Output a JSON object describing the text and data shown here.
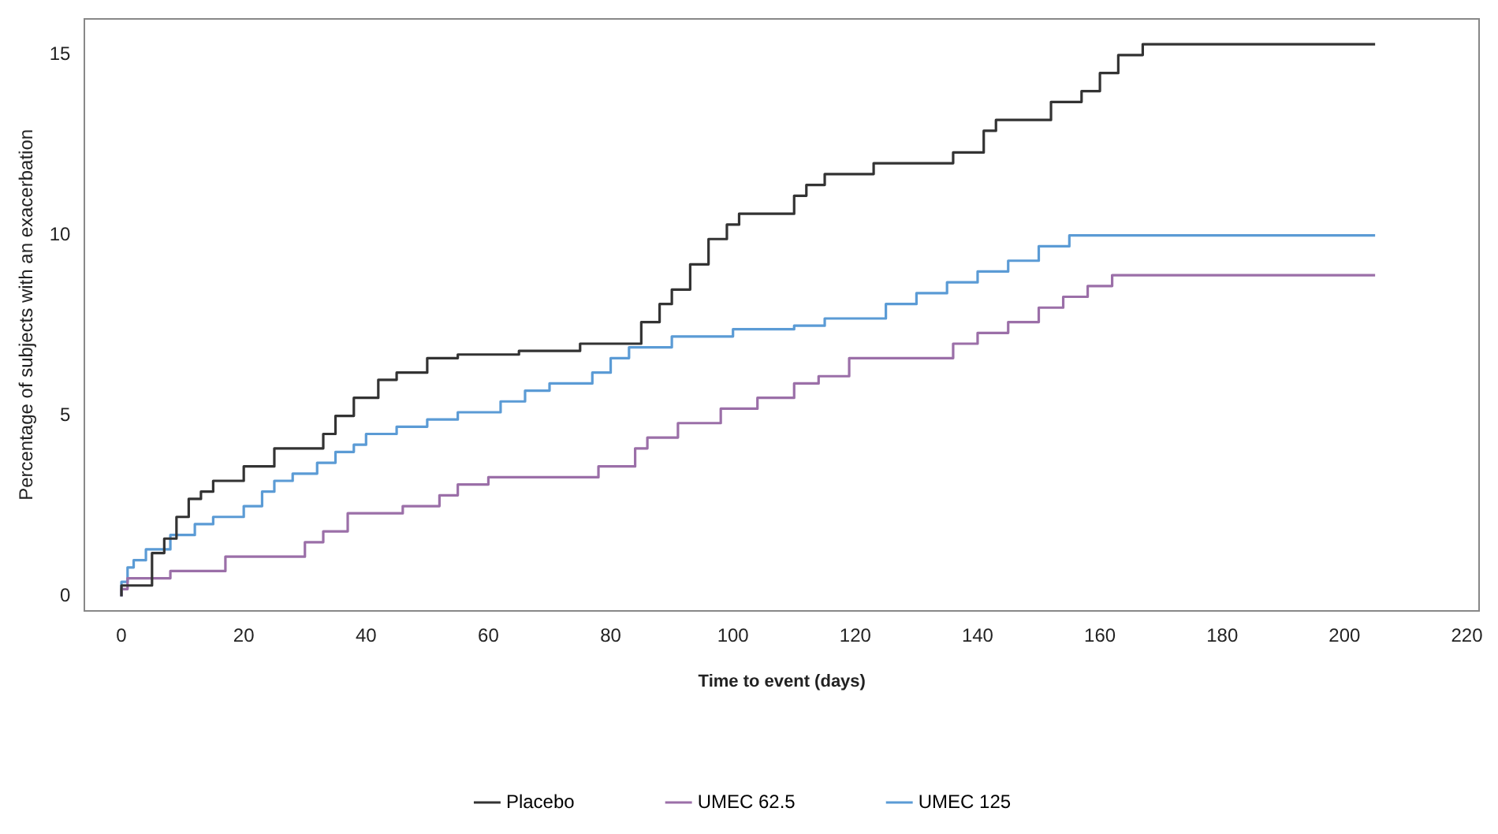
{
  "chart_data": {
    "type": "step",
    "xlabel": "Time to event (days)",
    "ylabel": "Percentage of subjects with an exacerbation",
    "xlim": [
      -6,
      222
    ],
    "xticks": [
      0,
      20,
      40,
      60,
      80,
      100,
      120,
      140,
      160,
      180,
      200,
      220
    ],
    "ylim": [
      -0.4,
      16
    ],
    "yticks": [
      0,
      5,
      10,
      15
    ],
    "grid": false,
    "legend": "bottom",
    "marker": "none",
    "line_style": "solid",
    "series": [
      {
        "name": "Placebo",
        "color": "#333333",
        "x": [
          0,
          5,
          7,
          9,
          11,
          13,
          15,
          20,
          25,
          33,
          35,
          38,
          42,
          45,
          50,
          55,
          65,
          75,
          85,
          88,
          90,
          93,
          96,
          99,
          101,
          110,
          112,
          115,
          123,
          136,
          141,
          143,
          152,
          157,
          160,
          163,
          167,
          169,
          205
        ],
        "values": [
          0,
          0.3,
          1.2,
          1.6,
          2.2,
          2.7,
          2.9,
          3.2,
          3.6,
          4.1,
          4.5,
          5.0,
          5.5,
          6.0,
          6.2,
          6.6,
          6.7,
          6.8,
          7.0,
          7.6,
          8.1,
          8.5,
          9.2,
          9.9,
          10.3,
          10.6,
          11.1,
          11.4,
          11.7,
          12.0,
          12.3,
          12.9,
          13.2,
          13.7,
          14.0,
          14.5,
          15.0,
          15.3,
          15.3
        ]
      },
      {
        "name": "UMEC 62.5",
        "color": "#9b6fa8",
        "x": [
          0,
          1,
          8,
          17,
          30,
          33,
          37,
          46,
          52,
          55,
          60,
          78,
          84,
          86,
          91,
          98,
          104,
          110,
          114,
          119,
          136,
          140,
          145,
          150,
          154,
          158,
          162,
          165,
          205
        ],
        "values": [
          0,
          0.2,
          0.5,
          0.7,
          1.1,
          1.5,
          1.8,
          2.3,
          2.5,
          2.8,
          3.1,
          3.3,
          3.6,
          4.1,
          4.4,
          4.8,
          5.2,
          5.5,
          5.9,
          6.1,
          6.6,
          7.0,
          7.3,
          7.6,
          8.0,
          8.3,
          8.6,
          8.9,
          8.9
        ]
      },
      {
        "name": "UMEC 125",
        "color": "#5b9bd5",
        "x": [
          0,
          1,
          2,
          4,
          8,
          12,
          15,
          20,
          23,
          25,
          28,
          32,
          35,
          38,
          40,
          45,
          50,
          55,
          62,
          66,
          70,
          77,
          80,
          83,
          90,
          100,
          110,
          115,
          125,
          130,
          135,
          140,
          145,
          150,
          155,
          160,
          205
        ],
        "values": [
          0,
          0.4,
          0.8,
          1.0,
          1.3,
          1.7,
          2.0,
          2.2,
          2.5,
          2.9,
          3.2,
          3.4,
          3.7,
          4.0,
          4.2,
          4.5,
          4.7,
          4.9,
          5.1,
          5.4,
          5.7,
          5.9,
          6.2,
          6.6,
          6.9,
          7.2,
          7.4,
          7.5,
          7.7,
          8.1,
          8.4,
          8.7,
          9.0,
          9.3,
          9.7,
          10.0,
          10.0
        ]
      }
    ]
  }
}
